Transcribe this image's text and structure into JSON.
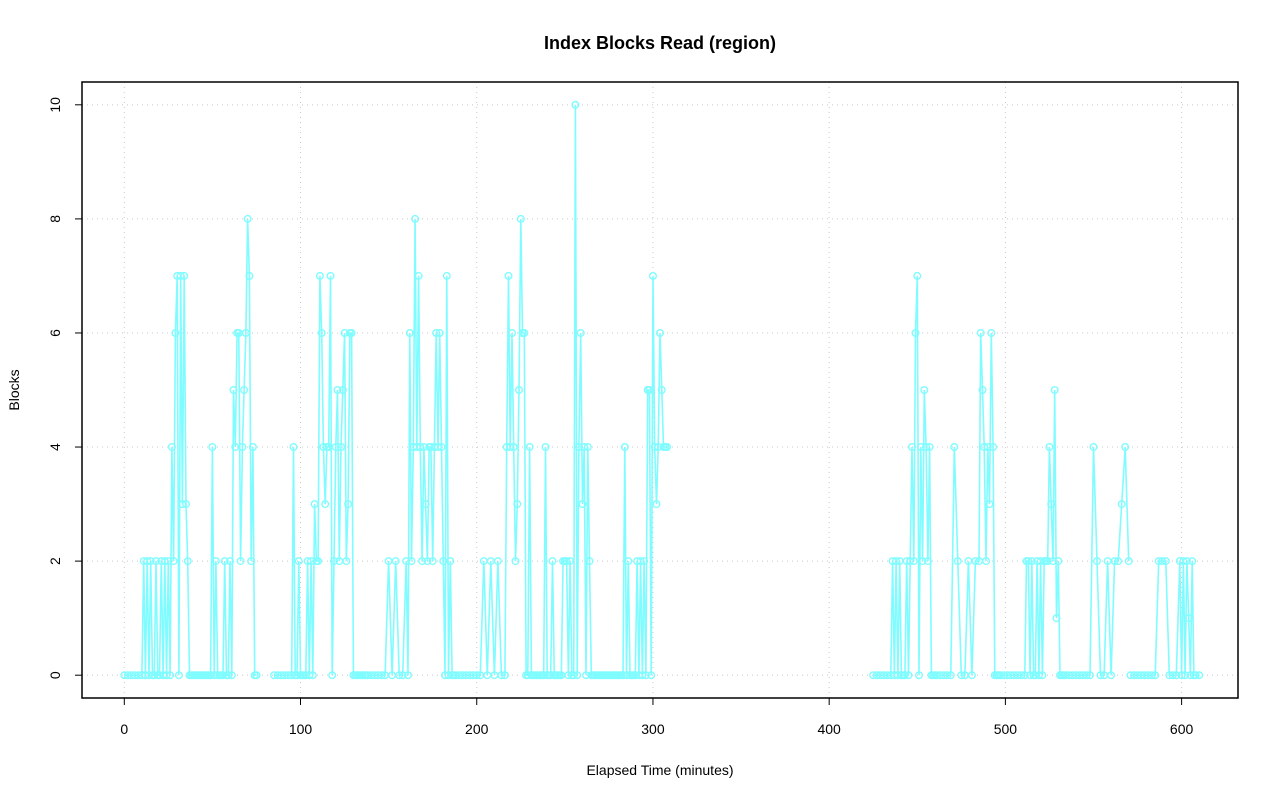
{
  "chart_data": {
    "type": "line",
    "title": "Index Blocks Read (region)",
    "xlabel": "Elapsed Time (minutes)",
    "ylabel": "Blocks",
    "xlim": [
      -24,
      632
    ],
    "ylim": [
      -0.4,
      10.4
    ],
    "xticks": [
      0,
      100,
      200,
      300,
      400,
      500,
      600
    ],
    "yticks": [
      0,
      2,
      4,
      6,
      8,
      10
    ],
    "grid": true,
    "color": "#7ffcff",
    "series": [
      {
        "x": [
          0,
          2,
          4,
          6,
          8,
          10,
          11,
          12,
          13,
          14,
          15,
          16,
          17,
          18,
          19,
          20,
          21,
          22,
          23,
          24,
          25,
          26,
          27,
          28,
          29,
          30,
          31,
          32,
          33,
          34,
          35,
          36,
          37,
          38,
          39,
          40,
          41,
          42,
          43,
          44,
          45,
          46,
          47,
          48,
          49,
          50,
          51,
          52,
          53,
          54,
          55,
          56,
          57,
          58,
          59,
          60,
          61,
          62,
          63,
          64,
          65,
          66,
          67,
          68,
          69,
          70,
          71,
          72,
          73,
          74,
          75
        ],
        "y": [
          0,
          0,
          0,
          0,
          0,
          0,
          2,
          0,
          2,
          0,
          2,
          0,
          0,
          2,
          0,
          0,
          2,
          0,
          2,
          0,
          2,
          0,
          4,
          2,
          6,
          7,
          0,
          7,
          3,
          7,
          3,
          2,
          0,
          0,
          0,
          0,
          0,
          0,
          0,
          0,
          0,
          0,
          0,
          0,
          0,
          4,
          0,
          2,
          0,
          0,
          0,
          0,
          2,
          0,
          0,
          2,
          0,
          5,
          4,
          6,
          6,
          2,
          4,
          5,
          6,
          8,
          7,
          2,
          4,
          0,
          0
        ]
      },
      {
        "x": [
          85,
          87,
          89,
          91,
          93,
          95,
          96,
          97,
          98,
          99,
          100,
          101,
          102,
          103,
          104,
          105,
          106,
          107,
          108,
          109,
          110,
          111,
          112,
          113,
          114,
          115,
          116,
          117,
          118,
          119,
          120,
          121,
          122,
          123,
          124,
          125,
          126,
          127,
          128,
          129,
          130,
          131,
          132,
          133,
          134,
          135,
          136,
          137
        ],
        "y": [
          0,
          0,
          0,
          0,
          0,
          0,
          4,
          0,
          0,
          2,
          0,
          0,
          0,
          0,
          2,
          0,
          2,
          0,
          3,
          2,
          2,
          7,
          6,
          4,
          3,
          4,
          4,
          7,
          0,
          2,
          4,
          5,
          2,
          4,
          5,
          6,
          2,
          3,
          6,
          6,
          0,
          0,
          0,
          0,
          0,
          0,
          0,
          0
        ]
      },
      {
        "x": [
          138,
          140,
          142,
          144,
          146,
          148,
          150,
          152,
          154,
          156,
          158,
          160,
          161,
          162,
          163,
          164,
          165,
          166,
          167,
          168,
          169,
          170,
          171,
          172,
          173,
          174,
          175,
          176,
          177,
          178,
          179,
          180,
          181,
          182,
          183,
          184,
          185,
          186,
          187,
          188
        ],
        "y": [
          0,
          0,
          0,
          0,
          0,
          0,
          2,
          0,
          2,
          0,
          0,
          2,
          0,
          6,
          2,
          4,
          8,
          4,
          7,
          4,
          2,
          4,
          3,
          2,
          4,
          4,
          2,
          4,
          6,
          4,
          6,
          4,
          2,
          0,
          7,
          0,
          2,
          0,
          0,
          0
        ]
      },
      {
        "x": [
          190,
          192,
          194,
          196,
          198,
          200,
          202,
          204,
          206,
          208,
          210,
          212,
          214,
          216,
          217,
          218,
          219,
          220,
          221,
          222,
          223,
          224,
          225,
          226,
          227,
          228,
          229,
          230,
          231,
          232,
          233,
          234,
          235,
          236,
          237,
          238,
          239,
          240,
          241,
          242,
          243,
          244,
          245,
          246,
          247,
          248,
          249,
          250,
          251,
          252,
          253,
          254,
          255,
          256,
          257,
          258,
          259,
          260,
          261,
          262,
          263,
          264,
          265,
          266,
          267,
          268,
          269,
          270,
          271,
          272,
          273,
          274,
          275,
          276,
          277,
          278,
          279,
          280,
          281,
          282,
          283,
          284,
          285,
          286,
          287,
          288,
          289,
          290,
          291,
          292,
          293,
          294,
          295,
          296,
          297,
          298,
          299,
          300,
          301,
          302,
          303,
          304,
          305,
          306,
          307,
          308
        ],
        "y": [
          0,
          0,
          0,
          0,
          0,
          0,
          0,
          2,
          0,
          2,
          0,
          2,
          0,
          0,
          4,
          7,
          4,
          6,
          4,
          2,
          3,
          5,
          8,
          6,
          6,
          0,
          0,
          4,
          0,
          0,
          0,
          0,
          0,
          0,
          0,
          0,
          4,
          0,
          0,
          0,
          2,
          0,
          0,
          0,
          0,
          0,
          2,
          2,
          2,
          0,
          2,
          0,
          0,
          10,
          0,
          4,
          6,
          3,
          4,
          0,
          4,
          2,
          0,
          0,
          0,
          0,
          0,
          0,
          0,
          0,
          0,
          0,
          0,
          0,
          0,
          0,
          0,
          0,
          0,
          0,
          0,
          4,
          0,
          2,
          0,
          0,
          0,
          0,
          2,
          0,
          2,
          0,
          2,
          0,
          5,
          5,
          0,
          7,
          4,
          3,
          4,
          6,
          5,
          4,
          4,
          4
        ]
      },
      {
        "x": [
          425,
          427,
          429,
          431,
          433,
          435,
          436,
          437,
          438,
          439,
          440,
          441,
          442,
          443,
          444,
          445,
          446,
          447,
          448,
          449,
          450,
          451,
          452,
          453,
          454,
          455,
          456,
          457,
          458,
          459,
          460,
          461
        ],
        "y": [
          0,
          0,
          0,
          0,
          0,
          0,
          2,
          0,
          2,
          0,
          2,
          0,
          0,
          0,
          2,
          0,
          2,
          4,
          2,
          6,
          7,
          0,
          4,
          2,
          5,
          4,
          2,
          4,
          0,
          0,
          0,
          0
        ]
      },
      {
        "x": [
          463,
          465,
          467,
          469,
          471,
          473,
          475,
          477,
          479,
          481,
          483,
          485,
          486,
          487,
          488,
          489,
          490,
          491,
          492,
          493,
          494,
          495,
          496
        ],
        "y": [
          0,
          0,
          0,
          0,
          4,
          2,
          0,
          0,
          2,
          0,
          2,
          2,
          6,
          5,
          4,
          2,
          4,
          3,
          6,
          4,
          0,
          0,
          0
        ]
      },
      {
        "x": [
          497,
          499,
          501,
          503,
          505,
          507,
          509,
          511,
          512,
          513,
          514,
          515,
          516,
          517,
          518,
          519,
          520,
          521,
          522,
          523,
          524,
          525,
          526,
          527,
          528,
          529,
          530,
          531,
          532,
          533,
          534
        ],
        "y": [
          0,
          0,
          0,
          0,
          0,
          0,
          0,
          0,
          2,
          2,
          0,
          2,
          0,
          0,
          2,
          0,
          2,
          0,
          2,
          2,
          2,
          4,
          3,
          2,
          5,
          1,
          2,
          0,
          0,
          0,
          0
        ]
      },
      {
        "x": [
          536,
          538,
          540,
          542,
          544,
          546,
          548,
          550,
          552,
          554,
          556,
          558,
          560,
          562,
          564,
          566,
          568,
          570
        ],
        "y": [
          0,
          0,
          0,
          0,
          0,
          0,
          0,
          4,
          2,
          0,
          0,
          2,
          0,
          2,
          2,
          3,
          4,
          2
        ]
      },
      {
        "x": [
          571,
          573,
          575,
          577,
          579,
          581,
          583,
          585,
          587,
          589,
          591,
          593,
          595,
          597,
          599,
          600,
          601,
          602,
          603,
          604,
          605,
          606,
          607,
          608,
          610
        ],
        "y": [
          0,
          0,
          0,
          0,
          0,
          0,
          0,
          0,
          2,
          2,
          2,
          0,
          0,
          0,
          2,
          0,
          2,
          0,
          2,
          1,
          0,
          2,
          0,
          0,
          0
        ]
      }
    ]
  }
}
